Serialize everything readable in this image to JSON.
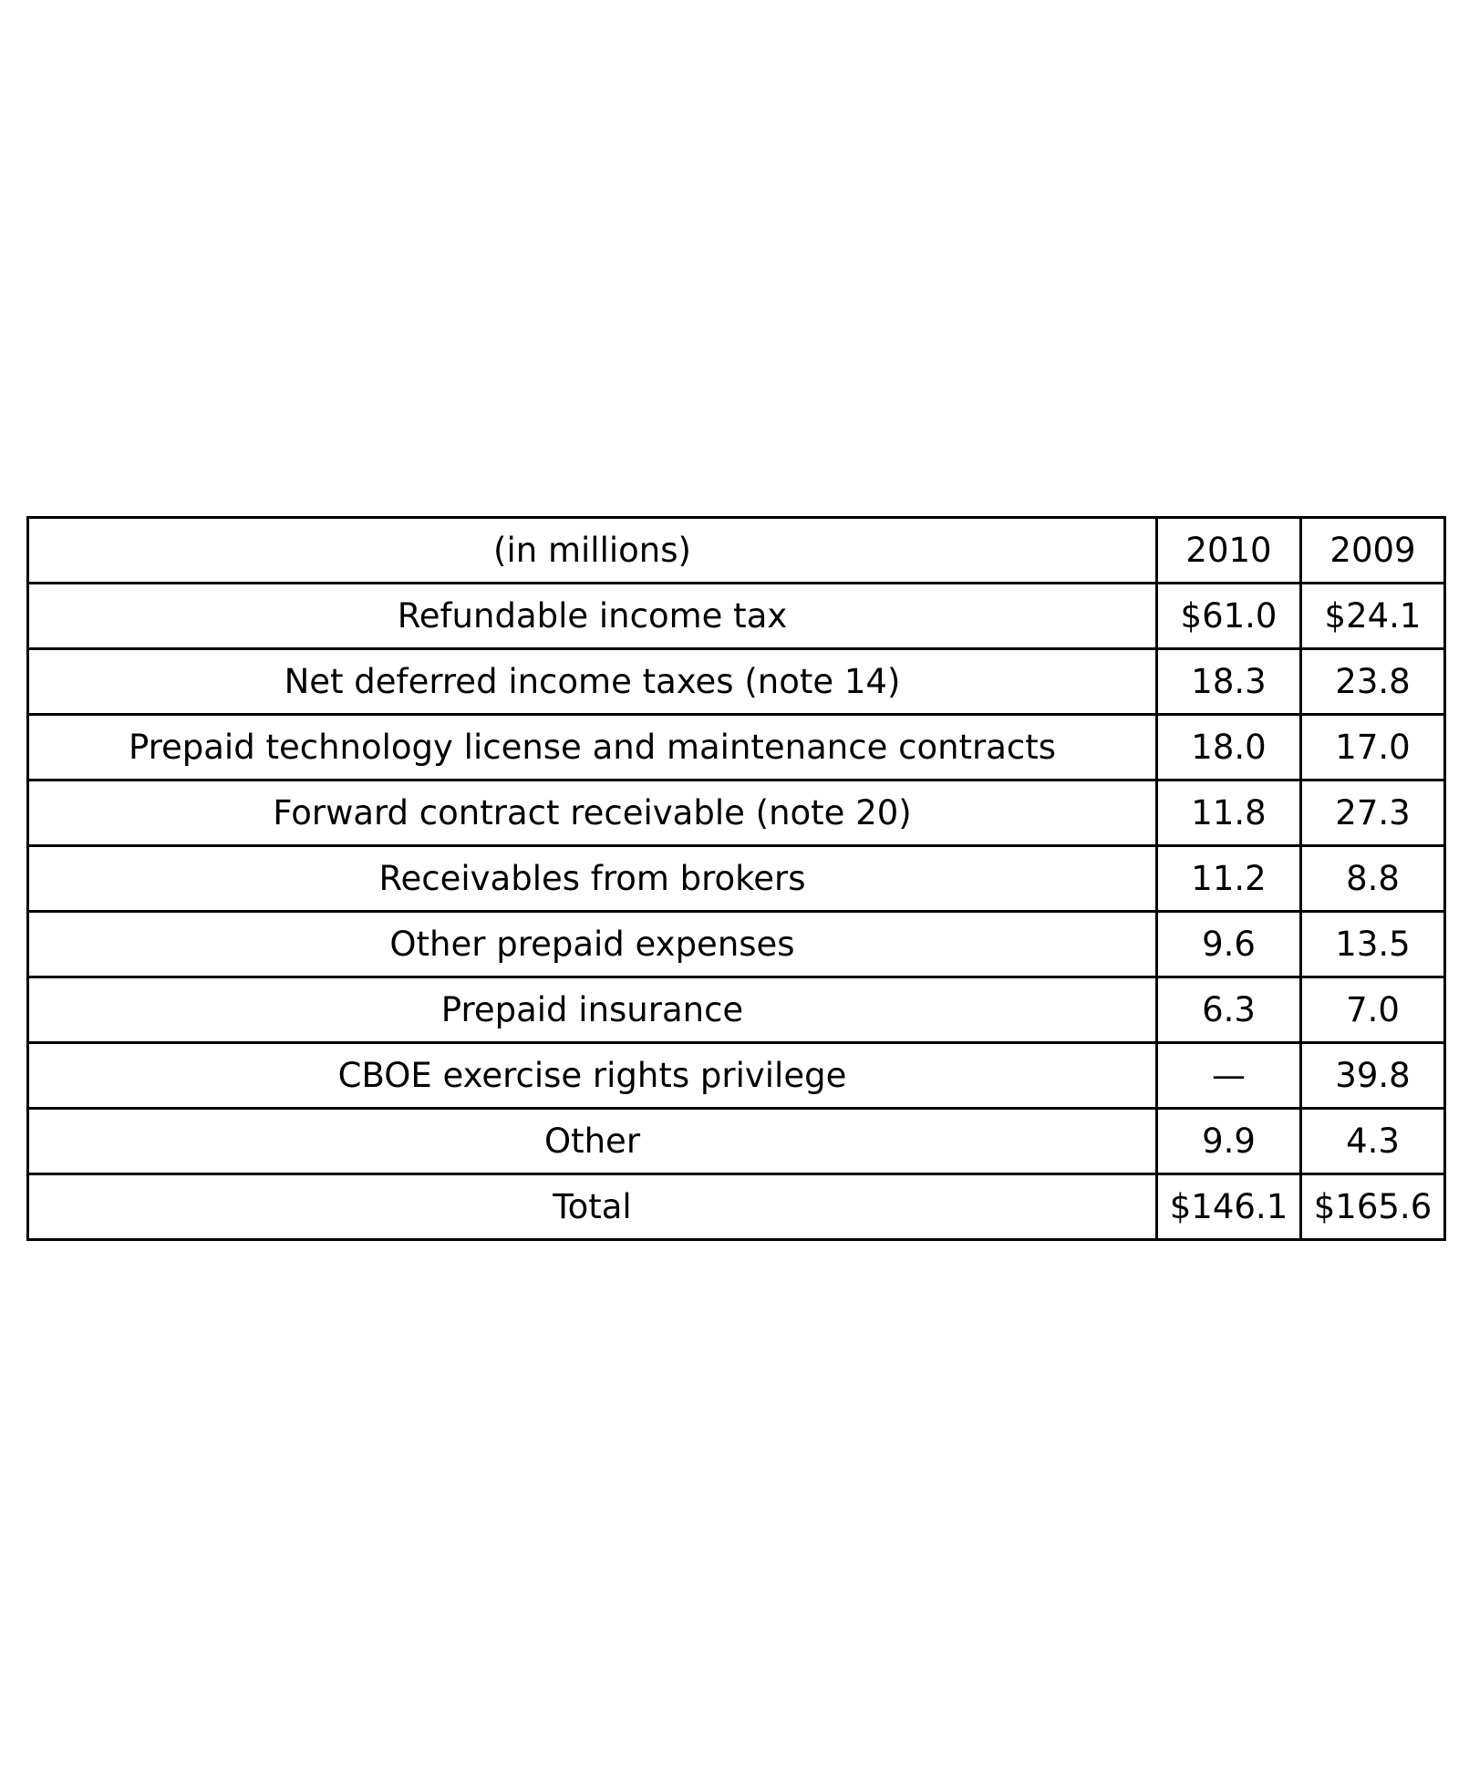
{
  "table": {
    "header": {
      "label": "(in millions)",
      "years": [
        "2010",
        "2009"
      ]
    },
    "rows": [
      {
        "label": "Refundable income tax",
        "v2010": "$61.0",
        "v2009": "$24.1"
      },
      {
        "label": "Net deferred income taxes (note 14)",
        "v2010": "18.3",
        "v2009": "23.8"
      },
      {
        "label": "Prepaid technology license and maintenance contracts",
        "v2010": "18.0",
        "v2009": "17.0"
      },
      {
        "label": "Forward contract receivable (note 20)",
        "v2010": "11.8",
        "v2009": "27.3"
      },
      {
        "label": "Receivables from brokers",
        "v2010": "11.2",
        "v2009": "8.8"
      },
      {
        "label": "Other prepaid expenses",
        "v2010": "9.6",
        "v2009": "13.5"
      },
      {
        "label": "Prepaid insurance",
        "v2010": "6.3",
        "v2009": "7.0"
      },
      {
        "label": "CBOE exercise rights privilege",
        "v2010": "—",
        "v2009": "39.8"
      },
      {
        "label": "Other",
        "v2010": "9.9",
        "v2009": "4.3"
      },
      {
        "label": "Total",
        "v2010": "$146.1",
        "v2009": "$165.6"
      }
    ]
  }
}
